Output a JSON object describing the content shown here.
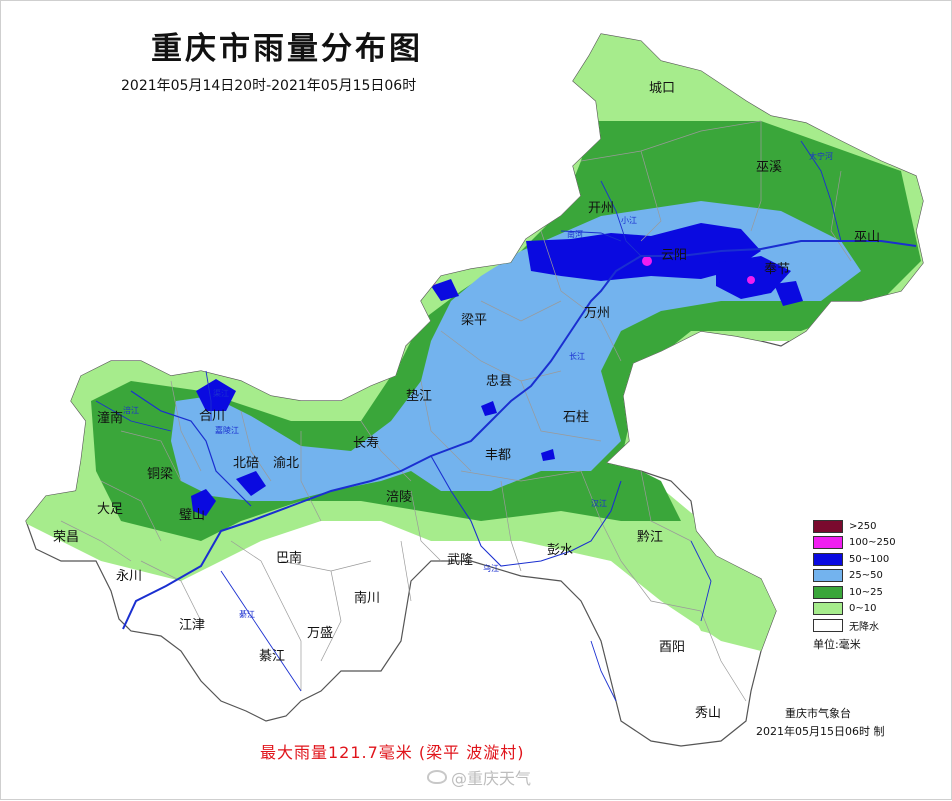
{
  "title": "重庆市雨量分布图",
  "period": "2021年05月14日20时-2021年05月15日06时",
  "map": {
    "regions": [
      "城口",
      "巫溪",
      "开州",
      "云阳",
      "奉节",
      "巫山",
      "梁平",
      "万州",
      "忠县",
      "石柱",
      "垫江",
      "长寿",
      "丰都",
      "涪陵",
      "潼南",
      "合川",
      "北碚",
      "渝北",
      "铜梁",
      "大足",
      "荣昌",
      "永川",
      "璧山",
      "巴南",
      "武隆",
      "彭水",
      "黔江",
      "南川",
      "江津",
      "万盛",
      "綦江",
      "酉阳",
      "秀山"
    ],
    "rivers": [
      "长江",
      "嘉陵江",
      "乌江",
      "綦江",
      "大宁河",
      "小江",
      "南河",
      "涪江",
      "渠江",
      "汉江"
    ]
  },
  "legend": {
    "items": [
      {
        "label": ">250",
        "color": "#7a0a2e"
      },
      {
        "label": "100~250",
        "color": "#f01ef0"
      },
      {
        "label": "50~100",
        "color": "#0a0ae0"
      },
      {
        "label": "25~50",
        "color": "#73b3ee"
      },
      {
        "label": "10~25",
        "color": "#3aa63a"
      },
      {
        "label": "0~10",
        "color": "#a6ec8c"
      },
      {
        "label": "无降水",
        "color": "#ffffff"
      }
    ],
    "unit": "单位:毫米"
  },
  "issuer": "重庆市气象台",
  "issue_time": "2021年05月15日06时  制",
  "max_rain": "最大雨量121.7毫米 (梁平 波漩村)",
  "watermark": "@重庆天气"
}
